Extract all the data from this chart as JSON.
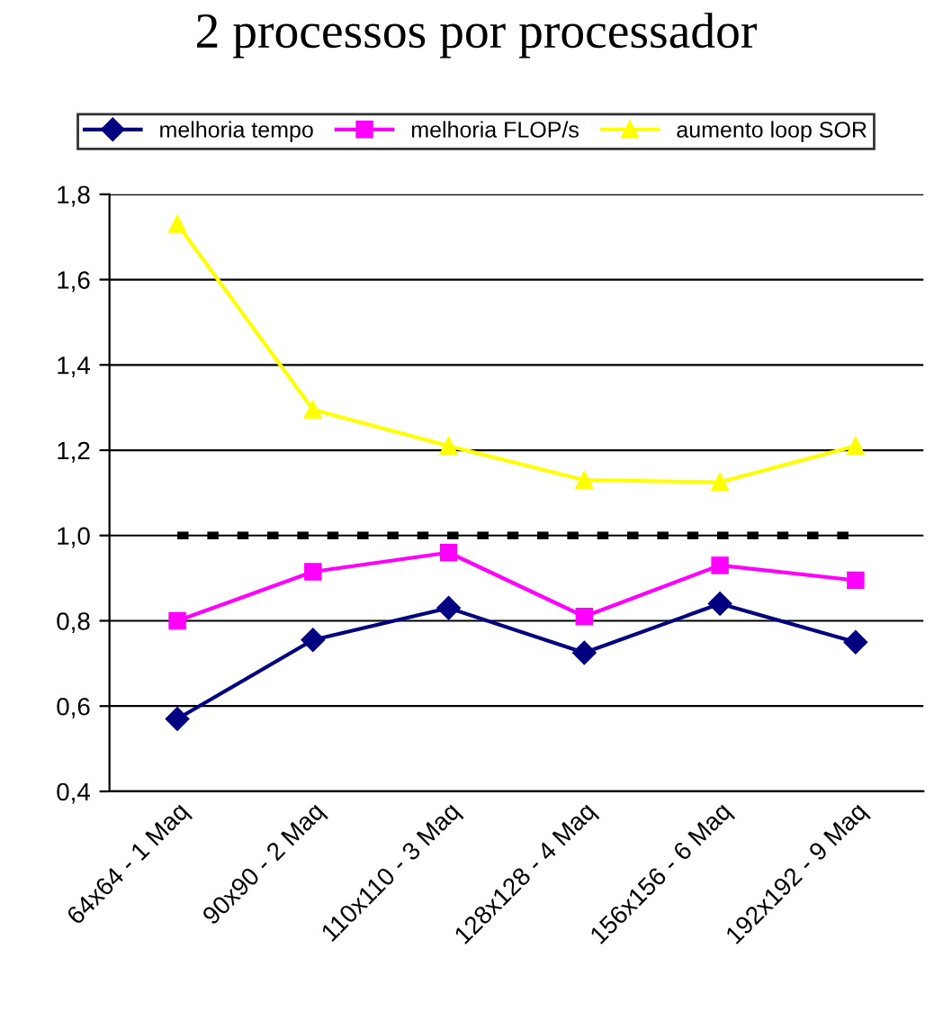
{
  "chart_data": {
    "type": "line",
    "title": "2 processos por processador",
    "categories": [
      "64x64 - 1 Maq",
      "90x90 - 2 Maq",
      "110x110 - 3 Maq",
      "128x128 - 4 Maq",
      "156x156 - 6 Maq",
      "192x192 - 9 Maq"
    ],
    "series": [
      {
        "name": "melhoria tempo",
        "color": "#000080",
        "marker": "diamond",
        "values": [
          0.57,
          0.755,
          0.83,
          0.725,
          0.84,
          0.75
        ]
      },
      {
        "name": "melhoria FLOP/s",
        "color": "#ff00ff",
        "marker": "square",
        "values": [
          0.8,
          0.915,
          0.96,
          0.81,
          0.93,
          0.895
        ]
      },
      {
        "name": "aumento loop SOR",
        "color": "#ffff00",
        "marker": "triangle",
        "values": [
          1.73,
          1.295,
          1.21,
          1.13,
          1.125,
          1.21
        ]
      },
      {
        "color": "#000000",
        "marker": "none",
        "line_style": "dotted",
        "values": [
          1.0,
          1.0,
          1.0,
          1.0,
          1.0,
          1.0
        ]
      }
    ],
    "ylim": [
      0.4,
      1.8
    ],
    "yticks": [
      {
        "value": 0.4,
        "label": "0,4"
      },
      {
        "value": 0.6,
        "label": "0,6"
      },
      {
        "value": 0.8,
        "label": "0,8"
      },
      {
        "value": 1.0,
        "label": "1,0"
      },
      {
        "value": 1.2,
        "label": "1,2"
      },
      {
        "value": 1.4,
        "label": "1,4"
      },
      {
        "value": 1.6,
        "label": "1,6"
      },
      {
        "value": 1.8,
        "label": "1,8"
      }
    ],
    "grid": "y",
    "legend": "top",
    "line_style": "solid"
  }
}
